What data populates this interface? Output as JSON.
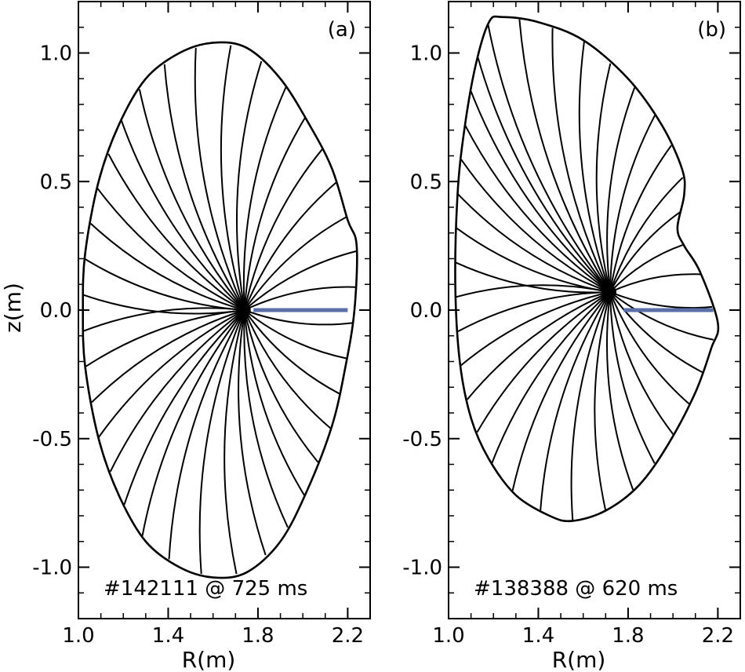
{
  "chart_data": [
    {
      "type": "line",
      "panel_label": "(a)",
      "annotation": "#142111 @ 725 ms",
      "xlabel": "R(m)",
      "ylabel": "z(m)",
      "xlim": [
        1.0,
        2.3
      ],
      "ylim": [
        -1.2,
        1.2
      ],
      "xticks": [
        1.0,
        1.4,
        1.8,
        2.2
      ],
      "xtick_labels": [
        "1.0",
        "1.4",
        "1.8",
        "2.2"
      ],
      "yticks": [
        1.0,
        0.5,
        0.0,
        -0.5,
        -1.0
      ],
      "ytick_labels": [
        "1.0",
        "0.5",
        "0.0",
        "-0.5",
        "-1.0"
      ],
      "magnetic_axis": [
        1.74,
        0.0
      ],
      "boundary": [
        [
          1.6,
          1.04
        ],
        [
          1.45,
          1.0
        ],
        [
          1.3,
          0.9
        ],
        [
          1.18,
          0.72
        ],
        [
          1.09,
          0.5
        ],
        [
          1.03,
          0.22
        ],
        [
          1.02,
          0.0
        ],
        [
          1.03,
          -0.22
        ],
        [
          1.09,
          -0.5
        ],
        [
          1.18,
          -0.72
        ],
        [
          1.3,
          -0.9
        ],
        [
          1.45,
          -1.0
        ],
        [
          1.6,
          -1.04
        ],
        [
          1.75,
          -1.02
        ],
        [
          1.9,
          -0.9
        ],
        [
          2.02,
          -0.7
        ],
        [
          2.13,
          -0.45
        ],
        [
          2.19,
          -0.22
        ],
        [
          2.23,
          0.0
        ],
        [
          2.24,
          0.25
        ],
        [
          2.2,
          0.35
        ],
        [
          2.13,
          0.55
        ],
        [
          2.03,
          0.72
        ],
        [
          1.9,
          0.9
        ],
        [
          1.75,
          1.02
        ]
      ],
      "rays": 36,
      "blue_line": {
        "x": [
          1.78,
          2.2
        ],
        "y": [
          0.0,
          0.0
        ],
        "color": "#5a6ea8"
      },
      "ray_color": "#000000"
    },
    {
      "type": "line",
      "panel_label": "(b)",
      "annotation": "#138388 @ 620 ms",
      "xlabel": "R(m)",
      "ylabel": "",
      "xlim": [
        1.0,
        2.3
      ],
      "ylim": [
        -1.2,
        1.2
      ],
      "xticks": [
        1.0,
        1.4,
        1.8,
        2.2
      ],
      "xtick_labels": [
        "1.0",
        "1.4",
        "1.8",
        "2.2"
      ],
      "yticks": [
        1.0,
        0.5,
        0.0,
        -0.5,
        -1.0
      ],
      "ytick_labels": [
        "1.0",
        "0.5",
        "0.0",
        "-0.5",
        "-1.0"
      ],
      "magnetic_axis": [
        1.72,
        0.07
      ],
      "boundary": [
        [
          1.24,
          1.14
        ],
        [
          1.18,
          1.12
        ],
        [
          1.12,
          0.95
        ],
        [
          1.07,
          0.7
        ],
        [
          1.04,
          0.45
        ],
        [
          1.03,
          0.1
        ],
        [
          1.05,
          -0.2
        ],
        [
          1.1,
          -0.42
        ],
        [
          1.18,
          -0.58
        ],
        [
          1.3,
          -0.72
        ],
        [
          1.45,
          -0.8
        ],
        [
          1.55,
          -0.82
        ],
        [
          1.7,
          -0.78
        ],
        [
          1.85,
          -0.68
        ],
        [
          1.98,
          -0.52
        ],
        [
          2.1,
          -0.32
        ],
        [
          2.17,
          -0.15
        ],
        [
          2.2,
          -0.05
        ],
        [
          2.12,
          0.15
        ],
        [
          2.05,
          0.25
        ],
        [
          2.02,
          0.32
        ],
        [
          2.05,
          0.45
        ],
        [
          2.04,
          0.55
        ],
        [
          1.95,
          0.72
        ],
        [
          1.8,
          0.9
        ],
        [
          1.6,
          1.05
        ],
        [
          1.4,
          1.12
        ]
      ],
      "rays": 36,
      "blue_line": {
        "x": [
          1.78,
          2.18
        ],
        "y": [
          0.0,
          0.0
        ],
        "color": "#5a6ea8"
      },
      "ray_color": "#000000"
    }
  ]
}
